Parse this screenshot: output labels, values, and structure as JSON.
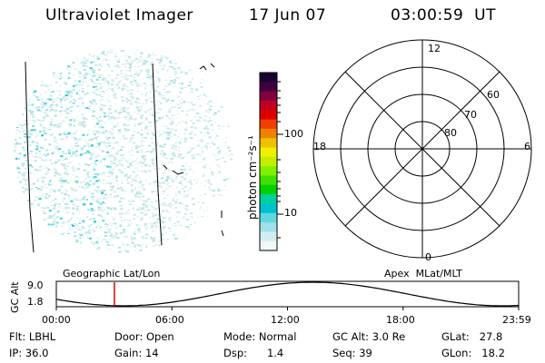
{
  "header": {
    "instrument": "Ultraviolet Imager",
    "date": "17 Jun 07",
    "time": "03:00:59  UT"
  },
  "colorbar": {
    "unit_label": "photon cm⁻²s⁻¹",
    "tick_labels": [
      "100",
      "10"
    ],
    "colors": [
      "#1a0030",
      "#400040",
      "#800040",
      "#c00020",
      "#e00000",
      "#f04000",
      "#f08000",
      "#f0c000",
      "#f0f000",
      "#c0f000",
      "#80f000",
      "#40e000",
      "#00d000",
      "#00d0a0",
      "#00c0d0",
      "#60d8e0",
      "#a0e0e8",
      "#d0eef0",
      "#f0f8f8"
    ]
  },
  "polar_plot": {
    "mlt_labels": {
      "top": "12",
      "left": "18",
      "right": "6",
      "bottom": "0"
    },
    "lat_labels": [
      "60",
      "70",
      "80"
    ]
  },
  "altitude_strip": {
    "axis_label": "GC Alt",
    "y_ticks": [
      "9.0",
      "1.8"
    ],
    "left_title": "Geographic Lat/Lon",
    "right_title": "Apex  MLat/MLT",
    "x_ticks": [
      "00:00",
      "06:00",
      "12:00",
      "18:00",
      "23:59"
    ],
    "marker_color": "#e00000"
  },
  "info": {
    "flt": "Flt: LBHL",
    "ip": "IP: 36.0",
    "door": "Door: Open",
    "gain": "Gain: 14",
    "mode": "Mode: Normal",
    "dsp": "Dsp:      1.4",
    "gcalt": "GC Alt: 3.0 Re",
    "seq": "Seq: 39",
    "glat": "GLat:   27.8",
    "glon": "GLon:   18.2"
  }
}
